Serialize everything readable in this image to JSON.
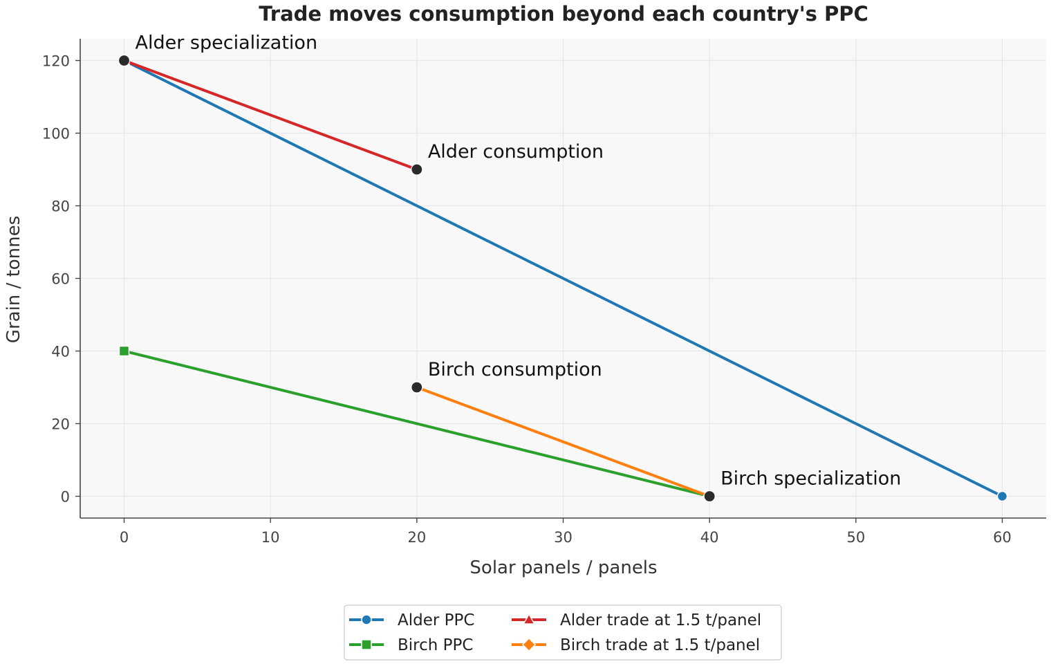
{
  "chart_data": {
    "type": "line",
    "title": "Trade moves consumption beyond each country's PPC",
    "xlabel": "Solar panels / panels",
    "ylabel": "Grain / tonnes",
    "xlim": [
      -3,
      63
    ],
    "ylim": [
      -6,
      126
    ],
    "xticks": [
      0,
      10,
      20,
      30,
      40,
      50,
      60
    ],
    "yticks": [
      0,
      20,
      40,
      60,
      80,
      100,
      120
    ],
    "grid": true,
    "legend_position": "bottom-center",
    "series": [
      {
        "name": "Alder PPC",
        "color": "#1f77b4",
        "marker": "circle",
        "x": [
          0,
          60
        ],
        "y": [
          120,
          0
        ]
      },
      {
        "name": "Birch PPC",
        "color": "#2ca02c",
        "marker": "square",
        "x": [
          0,
          40
        ],
        "y": [
          40,
          0
        ]
      },
      {
        "name": "Alder trade at 1.5 t/panel",
        "color": "#d62728",
        "marker": "triangle",
        "x": [
          0,
          20
        ],
        "y": [
          120,
          90
        ]
      },
      {
        "name": "Birch trade at 1.5 t/panel",
        "color": "#ff7f0e",
        "marker": "diamond",
        "x": [
          40,
          20
        ],
        "y": [
          0,
          30
        ]
      }
    ],
    "annotations": [
      {
        "text": "Alder specialization",
        "x": 0,
        "y": 120
      },
      {
        "text": "Alder consumption",
        "x": 20,
        "y": 90
      },
      {
        "text": "Birch consumption",
        "x": 20,
        "y": 30
      },
      {
        "text": "Birch specialization",
        "x": 40,
        "y": 0
      }
    ]
  }
}
